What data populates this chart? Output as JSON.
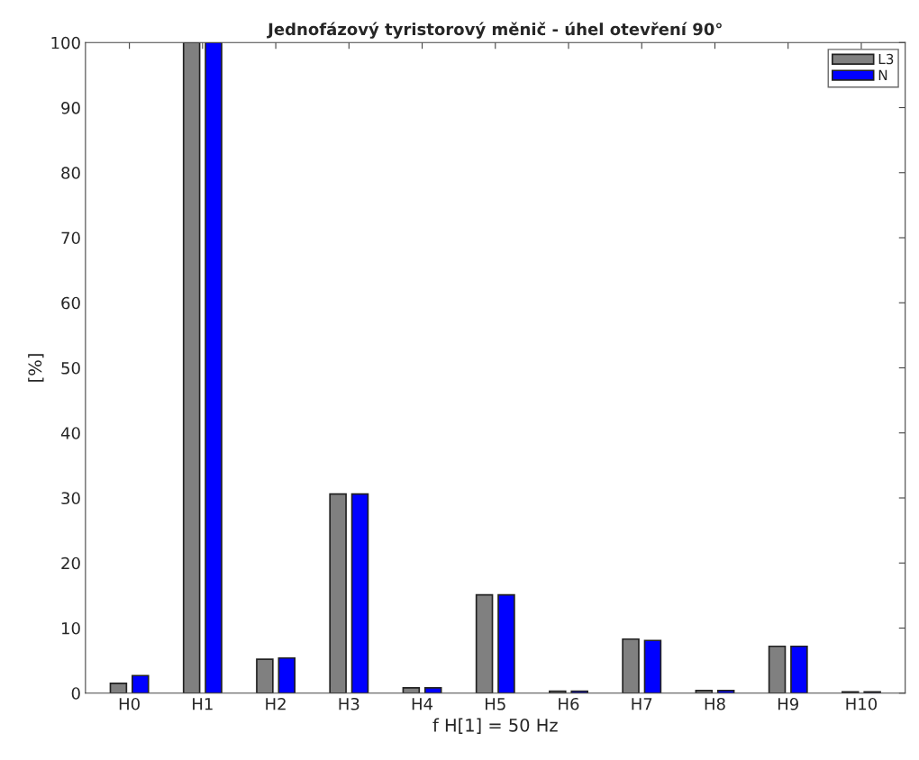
{
  "chart_data": {
    "type": "bar",
    "title": "Jednofázový tyristorový měnič - úhel otevření 90°",
    "xlabel": "f H[1] = 50 Hz",
    "ylabel": "[%]",
    "categories": [
      "H0",
      "H1",
      "H2",
      "H3",
      "H4",
      "H5",
      "H6",
      "H7",
      "H8",
      "H9",
      "H10"
    ],
    "series": [
      {
        "name": "L3",
        "color": "#808080",
        "values": [
          1.5,
          100,
          5.2,
          30.6,
          0.8,
          15.1,
          0.3,
          8.3,
          0.4,
          7.2,
          0.2
        ]
      },
      {
        "name": "N",
        "color": "#0000ff",
        "values": [
          2.7,
          100,
          5.4,
          30.6,
          0.8,
          15.1,
          0.3,
          8.1,
          0.4,
          7.2,
          0.2
        ]
      }
    ],
    "ylim": [
      0,
      100
    ],
    "yticks": [
      0,
      10,
      20,
      30,
      40,
      50,
      60,
      70,
      80,
      90,
      100
    ],
    "grid": false,
    "legend": "top right"
  }
}
